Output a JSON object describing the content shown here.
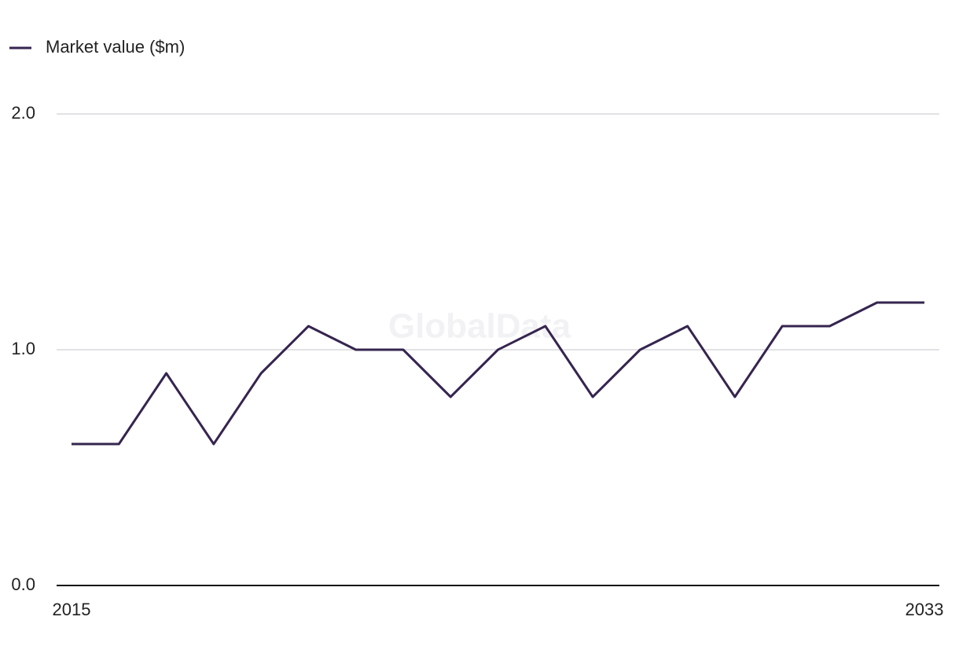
{
  "chart_data": {
    "type": "line",
    "watermark": "GlobalData",
    "x": [
      2015,
      2016,
      2017,
      2018,
      2019,
      2020,
      2021,
      2022,
      2023,
      2024,
      2025,
      2026,
      2027,
      2028,
      2029,
      2030,
      2031,
      2032,
      2033
    ],
    "series": [
      {
        "name": "Market value ($m)",
        "color": "#35254f",
        "values": [
          0.6,
          0.6,
          0.9,
          0.6,
          0.9,
          1.1,
          1.0,
          1.0,
          0.8,
          1.0,
          1.1,
          0.8,
          1.0,
          1.1,
          0.8,
          1.1,
          1.1,
          1.2,
          1.2
        ]
      }
    ],
    "xlim": [
      2015,
      2033
    ],
    "xticks": [
      2015,
      2033
    ],
    "ylim": [
      0,
      2
    ],
    "yticks": [
      {
        "value": 0,
        "label": "0.0"
      },
      {
        "value": 1,
        "label": "1.0"
      },
      {
        "value": 2,
        "label": "2.0"
      }
    ],
    "grid": true,
    "legend": "top-left"
  }
}
